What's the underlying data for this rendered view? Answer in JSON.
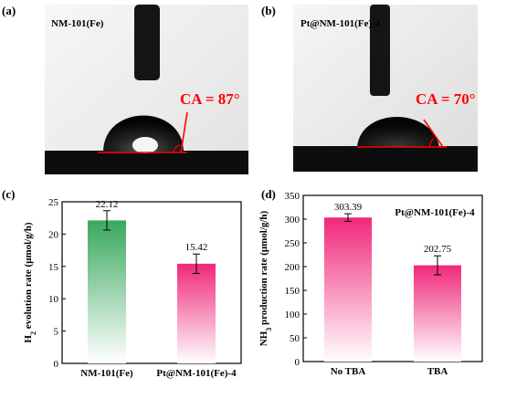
{
  "panels": {
    "a": {
      "letter": "(a)",
      "sample": "NM-101(Fe)",
      "ca_label": "CA = 87°",
      "contact_angle_deg": 87
    },
    "b": {
      "letter": "(b)",
      "sample": "Pt@NM-101(Fe)-4",
      "ca_label": "CA = 70°",
      "contact_angle_deg": 70
    },
    "c": {
      "letter": "(c)"
    },
    "d": {
      "letter": "(d)"
    }
  },
  "colors": {
    "accent_red": "#ff0000",
    "bar_green": "#3aa85e",
    "bar_pink": "#f0287a"
  },
  "chart_data": [
    {
      "id": "c",
      "type": "bar",
      "categories": [
        "NM-101(Fe)",
        "Pt@NM-101(Fe)-4"
      ],
      "values": [
        22.12,
        15.42
      ],
      "errors": [
        1.5,
        1.5
      ],
      "value_labels": [
        "22.12",
        "15.42"
      ],
      "bar_colors": [
        "#3aa85e",
        "#f0287a"
      ],
      "ylabel_parts": [
        "H",
        "2",
        " evolution rate (μmol/g/h)"
      ],
      "ylim": [
        0,
        25
      ],
      "yticks": [
        0,
        5,
        10,
        15,
        20,
        25
      ],
      "title": ""
    },
    {
      "id": "d",
      "type": "bar",
      "categories": [
        "No TBA",
        "TBA"
      ],
      "values": [
        303.39,
        202.75
      ],
      "errors": [
        8,
        20
      ],
      "value_labels": [
        "303.39",
        "202.75"
      ],
      "bar_colors": [
        "#f0287a",
        "#f0287a"
      ],
      "ylabel_parts": [
        "NH",
        "3",
        " production rate (μmol/g/h)"
      ],
      "ylim": [
        0,
        350
      ],
      "yticks": [
        0,
        50,
        100,
        150,
        200,
        250,
        300,
        350
      ],
      "annotation": "Pt@NM-101(Fe)-4",
      "title": ""
    }
  ]
}
